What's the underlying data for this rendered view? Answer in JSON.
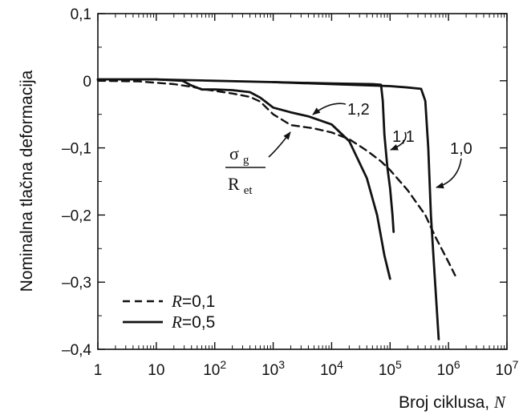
{
  "chart_data": {
    "type": "line",
    "xlabel": "Broj ciklusa, ",
    "xlabel_var": "N",
    "ylabel": "Nominalna tlačna deformacija",
    "x_scale": "log",
    "xlim": [
      1,
      10000000
    ],
    "ylim": [
      -0.4,
      0.1
    ],
    "x_ticks": [
      {
        "value": 1,
        "base": "1",
        "exp": ""
      },
      {
        "value": 10,
        "base": "10",
        "exp": ""
      },
      {
        "value": 100,
        "base": "10",
        "exp": "2"
      },
      {
        "value": 1000,
        "base": "10",
        "exp": "3"
      },
      {
        "value": 10000,
        "base": "10",
        "exp": "4"
      },
      {
        "value": 100000,
        "base": "10",
        "exp": "5"
      },
      {
        "value": 1000000,
        "base": "10",
        "exp": "6"
      },
      {
        "value": 10000000,
        "base": "10",
        "exp": "7"
      }
    ],
    "y_ticks": [
      {
        "value": 0.1,
        "label": "0,1"
      },
      {
        "value": 0,
        "label": "0"
      },
      {
        "value": -0.1,
        "label": "–0,1"
      },
      {
        "value": -0.2,
        "label": "–0,2"
      },
      {
        "value": -0.3,
        "label": "–0,3"
      },
      {
        "value": -0.4,
        "label": "–0,4"
      }
    ],
    "grid": false,
    "legend": {
      "position": "bottom-left",
      "entries": [
        {
          "var": "R",
          "value": "=0,1",
          "style": "dashed"
        },
        {
          "var": "R",
          "value": "=0,5",
          "style": "solid"
        }
      ]
    },
    "series": [
      {
        "style": "dashed",
        "x": [
          1,
          5,
          10,
          20,
          40,
          60,
          100,
          200,
          400,
          600,
          1000,
          2000,
          5000,
          10000,
          20000,
          40000,
          70000,
          100000,
          200000,
          400000,
          600000,
          1000000,
          1300000
        ],
        "y": [
          0.0,
          -0.001,
          -0.003,
          -0.005,
          -0.009,
          -0.012,
          -0.015,
          -0.019,
          -0.024,
          -0.031,
          -0.05,
          -0.066,
          -0.071,
          -0.077,
          -0.087,
          -0.104,
          -0.12,
          -0.133,
          -0.163,
          -0.2,
          -0.233,
          -0.27,
          -0.29
        ]
      },
      {
        "style": "solid",
        "curve": "1,0",
        "x": [
          1,
          10,
          100,
          1000,
          10000,
          100000,
          200000,
          340000,
          400000,
          450000,
          500000,
          560000,
          620000,
          680000
        ],
        "y": [
          0.002,
          0.002,
          0.0,
          -0.002,
          -0.005,
          -0.008,
          -0.01,
          -0.012,
          -0.03,
          -0.1,
          -0.2,
          -0.27,
          -0.33,
          -0.385
        ]
      },
      {
        "style": "solid",
        "curve": "1,1",
        "x": [
          1000,
          10000,
          50000,
          70000,
          75000,
          80000,
          90000,
          100000,
          110000,
          115000
        ],
        "y": [
          -0.002,
          -0.004,
          -0.005,
          -0.006,
          -0.03,
          -0.08,
          -0.13,
          -0.16,
          -0.2,
          -0.225
        ]
      },
      {
        "style": "solid",
        "curve": "1,2",
        "x": [
          1,
          10,
          28,
          40,
          60,
          100,
          200,
          400,
          600,
          1000,
          2000,
          4000,
          10000,
          20000,
          40000,
          60000,
          80000,
          100000
        ],
        "y": [
          0.002,
          0.002,
          0.0,
          -0.007,
          -0.013,
          -0.013,
          -0.014,
          -0.017,
          -0.025,
          -0.04,
          -0.047,
          -0.053,
          -0.065,
          -0.09,
          -0.145,
          -0.2,
          -0.26,
          -0.295
        ]
      }
    ],
    "annotations": [
      {
        "text": "1,2",
        "points_to_curve": "1,2"
      },
      {
        "text": "1,1",
        "points_to_curve": "1,1"
      },
      {
        "text": "1,0",
        "points_to_curve": "1,0"
      },
      {
        "numerator": "σ",
        "numerator_sub": "g",
        "denominator": "R",
        "denominator_sub": "et"
      }
    ]
  }
}
